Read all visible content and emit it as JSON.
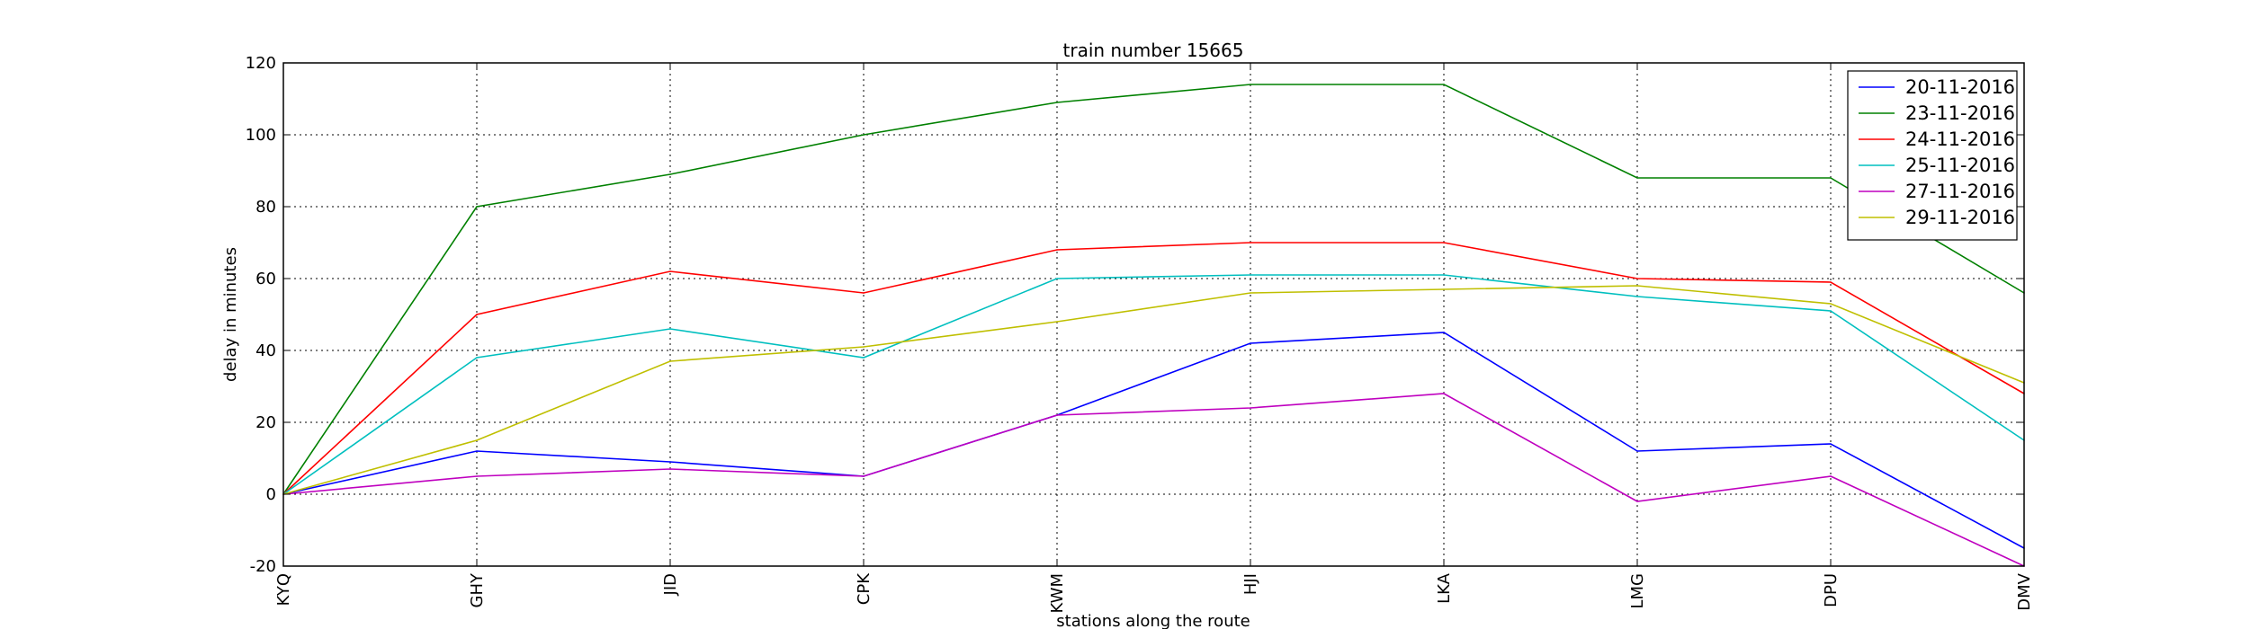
{
  "chart_data": {
    "type": "line",
    "title": "train number 15665",
    "xlabel": "stations along the route",
    "ylabel": "delay in minutes",
    "categories": [
      "KYQ",
      "GHY",
      "JID",
      "CPK",
      "KWM",
      "HJI",
      "LKA",
      "LMG",
      "DPU",
      "DMV"
    ],
    "ylim": [
      -20,
      120
    ],
    "yticks": [
      -20,
      0,
      20,
      40,
      60,
      80,
      100,
      120
    ],
    "grid": true,
    "legend_position": "top-right",
    "series": [
      {
        "name": "20-11-2016",
        "color": "#0000ff",
        "values": [
          0,
          12,
          9,
          5,
          22,
          42,
          45,
          12,
          14,
          -15
        ]
      },
      {
        "name": "23-11-2016",
        "color": "#008000",
        "values": [
          0,
          80,
          89,
          100,
          109,
          114,
          114,
          88,
          88,
          56
        ]
      },
      {
        "name": "24-11-2016",
        "color": "#ff0000",
        "values": [
          0,
          50,
          62,
          56,
          68,
          70,
          70,
          60,
          59,
          28
        ]
      },
      {
        "name": "25-11-2016",
        "color": "#00bfbf",
        "values": [
          0,
          38,
          46,
          38,
          60,
          61,
          61,
          55,
          51,
          15
        ]
      },
      {
        "name": "27-11-2016",
        "color": "#bf00bf",
        "values": [
          0,
          5,
          7,
          5,
          22,
          24,
          28,
          -2,
          5,
          -20
        ]
      },
      {
        "name": "29-11-2016",
        "color": "#bfbf00",
        "values": [
          0,
          15,
          37,
          41,
          48,
          56,
          57,
          58,
          53,
          31
        ]
      }
    ]
  }
}
